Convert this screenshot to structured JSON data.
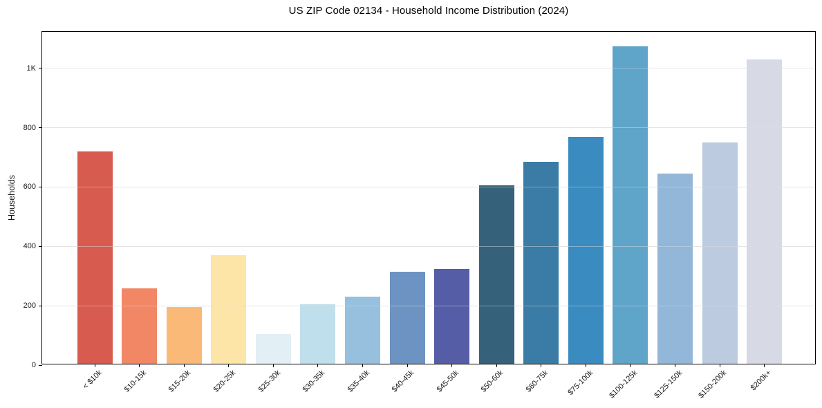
{
  "chart_data": {
    "type": "bar",
    "title": "US ZIP Code 02134 - Household Income Distribution (2024)",
    "xlabel": "",
    "ylabel": "Households",
    "categories": [
      "< $10k",
      "$10-15k",
      "$15-20k",
      "$20-25k",
      "$25-30k",
      "$30-35k",
      "$35-40k",
      "$40-45k",
      "$45-50k",
      "$50-60k",
      "$60-75k",
      "$75-100k",
      "$100-125k",
      "$125-150k",
      "$150-200k",
      "$200k+"
    ],
    "values": [
      715,
      255,
      190,
      365,
      100,
      200,
      225,
      310,
      320,
      600,
      680,
      765,
      1070,
      640,
      745,
      1025
    ],
    "bar_colors": [
      "#d85b50",
      "#f28765",
      "#fbb977",
      "#fde5a7",
      "#e2eff5",
      "#bfdfec",
      "#96c0dd",
      "#6d93c2",
      "#565da7",
      "#35617a",
      "#3a7ca5",
      "#398bc0",
      "#5fa4c9",
      "#92b7d8",
      "#bccbe0",
      "#d7d9e5"
    ],
    "yticks": {
      "values": [
        0,
        200,
        400,
        600,
        800,
        1000
      ],
      "labels": [
        "0",
        "200",
        "400",
        "600",
        "800",
        "1K"
      ]
    },
    "ylim": [
      0,
      1123
    ],
    "xtick_rotation_deg": 45,
    "grid": "horizontal",
    "legend": "none",
    "colors": {
      "background": "#ffffff",
      "gridline": "#e8e8e8",
      "axis": "#000000",
      "text": "#1a1a1a"
    }
  }
}
